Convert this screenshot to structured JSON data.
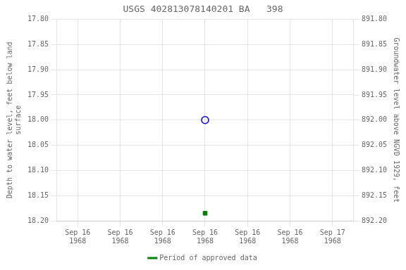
{
  "chart_data": {
    "type": "scatter",
    "title": "USGS 402813078140201 BA   398",
    "y_label": "Depth to water level, feet below land\nsurface",
    "y2_label": "Groundwater level above NGVD 1929, feet",
    "categories": [
      "Sep 16\n1968",
      "Sep 16\n1968",
      "Sep 16\n1968",
      "Sep 16\n1968",
      "Sep 16\n1968",
      "Sep 16\n1968",
      "Sep 17\n1968"
    ],
    "series": [
      {
        "color": "#0000cc",
        "marker": "open_circle",
        "values": [
          null,
          null,
          null,
          18.0,
          null,
          null,
          null
        ]
      },
      {
        "name": "Period of approved data",
        "color": "#008000",
        "marker": "square",
        "values": [
          null,
          null,
          null,
          18.185,
          null,
          null,
          null
        ]
      }
    ],
    "ylim": [
      18.2,
      17.8
    ],
    "yticks": [
      {
        "value": 17.8,
        "label": "17.80"
      },
      {
        "value": 17.85,
        "label": "17.85"
      },
      {
        "value": 17.9,
        "label": "17.90"
      },
      {
        "value": 17.95,
        "label": "17.95"
      },
      {
        "value": 18.0,
        "label": "18.00"
      },
      {
        "value": 18.05,
        "label": "18.05"
      },
      {
        "value": 18.1,
        "label": "18.10"
      },
      {
        "value": 18.15,
        "label": "18.15"
      },
      {
        "value": 18.2,
        "label": "18.20"
      }
    ],
    "y2lim": [
      892.2,
      891.8
    ],
    "y2ticks": [
      {
        "value": 892.2,
        "label": "892.20"
      },
      {
        "value": 892.15,
        "label": "892.15"
      },
      {
        "value": 892.1,
        "label": "892.10"
      },
      {
        "value": 892.05,
        "label": "892.05"
      },
      {
        "value": 892.0,
        "label": "892.00"
      },
      {
        "value": 891.95,
        "label": "891.95"
      },
      {
        "value": 891.9,
        "label": "891.90"
      },
      {
        "value": 891.85,
        "label": "891.85"
      },
      {
        "value": 891.8,
        "label": "891.80"
      }
    ],
    "grid": true,
    "legend": "bottom"
  }
}
